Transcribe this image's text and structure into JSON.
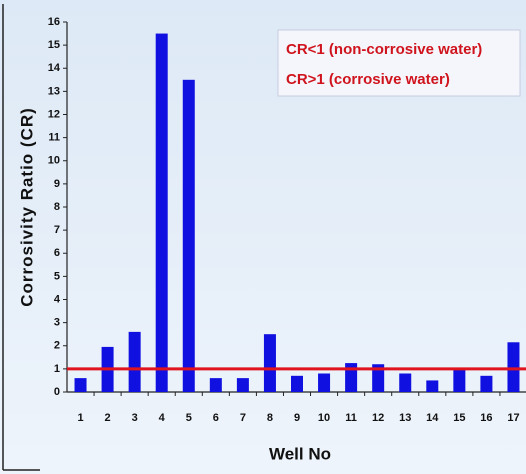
{
  "chart_data": {
    "type": "bar",
    "x_label": "Well No",
    "y_label": "Corrosivity Ratio (CR)",
    "categories": [
      "1",
      "2",
      "3",
      "4",
      "5",
      "6",
      "7",
      "8",
      "9",
      "10",
      "11",
      "12",
      "13",
      "14",
      "15",
      "16",
      "17"
    ],
    "values": [
      0.6,
      1.95,
      2.6,
      15.5,
      13.5,
      0.6,
      0.6,
      2.5,
      0.7,
      0.8,
      1.25,
      1.2,
      0.8,
      0.5,
      1.0,
      0.7,
      2.15
    ],
    "color": "#1010e0",
    "ylim": [
      0,
      16
    ],
    "yticks": [
      0,
      1,
      2,
      3,
      4,
      5,
      6,
      7,
      8,
      9,
      10,
      11,
      12,
      13,
      14,
      15,
      16
    ],
    "reference_line": {
      "value": 1,
      "color": "#e0141e"
    },
    "annotations": [
      "CR<1 (non-corrosive water)",
      "CR>1 (corrosive water)"
    ]
  }
}
